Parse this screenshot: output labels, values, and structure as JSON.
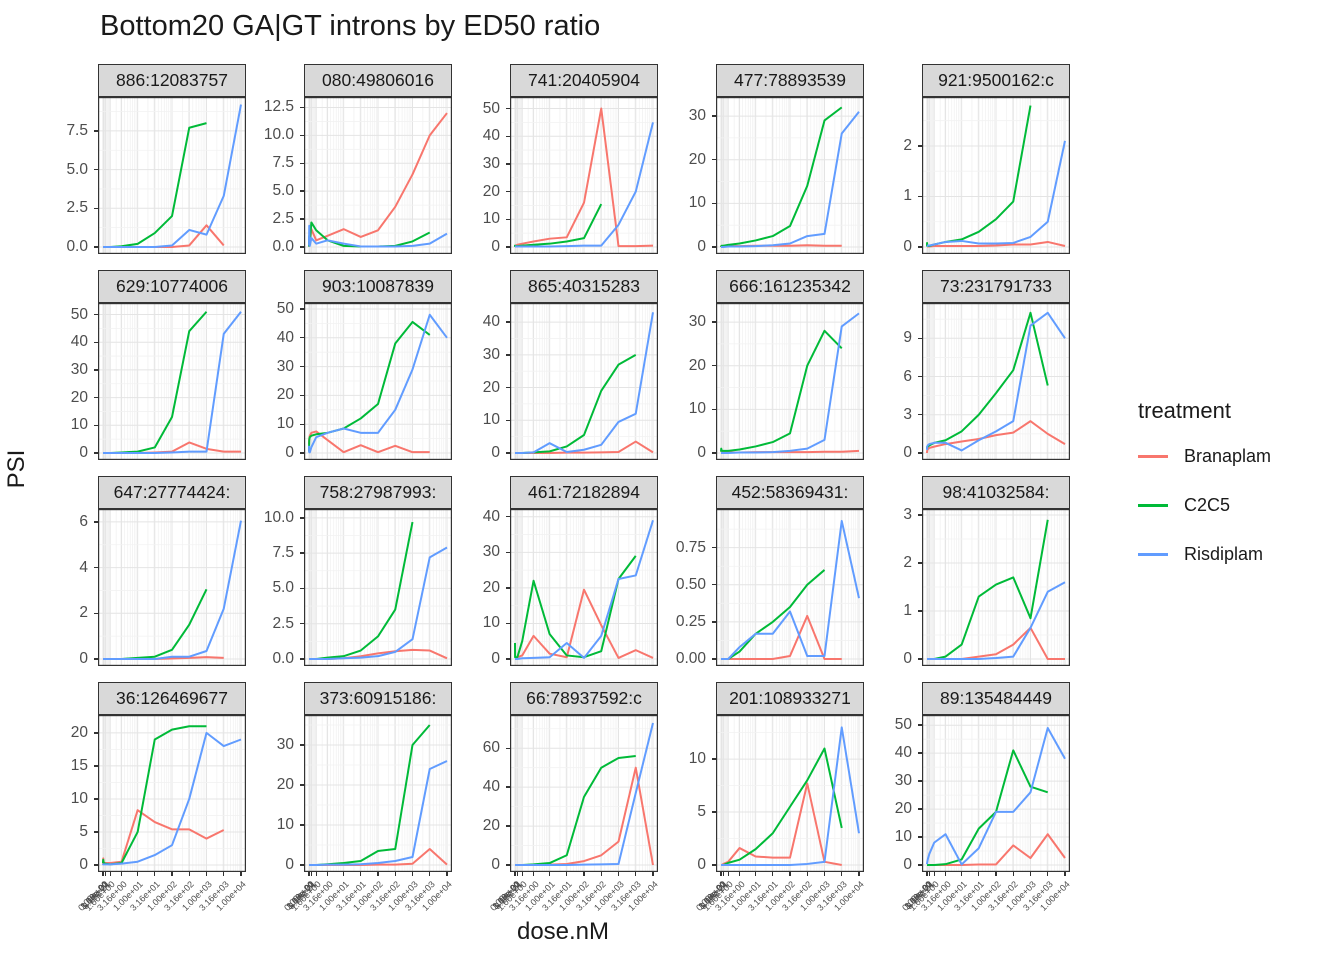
{
  "title": "Bottom20 GA|GT introns by ED50 ratio",
  "axes": {
    "x_title": "dose.nM",
    "y_title": "PSI",
    "x_tick_labels": [
      "0.00e+00",
      "1.00e-02",
      "3.16e-02",
      "1.00e-01",
      "3.16e-01",
      "1.00e+00",
      "3.16e+00",
      "1.00e+01",
      "3.16e+01",
      "1.00e+02",
      "3.16e+02",
      "1.00e+03",
      "3.16e+03",
      "1.00e+04"
    ]
  },
  "legend": {
    "title": "treatment",
    "items": [
      {
        "label": "Branaplam",
        "color": "#F8766D"
      },
      {
        "label": "C2C5",
        "color": "#00BA38"
      },
      {
        "label": "Risdiplam",
        "color": "#619CFF"
      }
    ]
  },
  "chart_data": {
    "type": "line",
    "x_scale": "pseudo-log (asinh) dose axis",
    "x_doses": [
      0,
      0.01,
      0.0316,
      0.1,
      0.316,
      1,
      3.16,
      10,
      31.6,
      100,
      316,
      1000,
      3160,
      10000
    ],
    "series_names": [
      "Branaplam",
      "C2C5",
      "Risdiplam"
    ],
    "facets": [
      {
        "strip": "886:12083757",
        "ymax": 9.3,
        "yticks": [
          "0.0",
          "2.5",
          "5.0",
          "7.5"
        ],
        "Branaplam": [
          0,
          0,
          0,
          0,
          0,
          0,
          0,
          0,
          0,
          0,
          0.1,
          1.4,
          0.1,
          null
        ],
        "C2C5": [
          0,
          0,
          0,
          0,
          0,
          0,
          0.05,
          0.2,
          0.9,
          2.0,
          7.7,
          8.0,
          null,
          null
        ],
        "Risdiplam": [
          0,
          0,
          0,
          0,
          0,
          0,
          0,
          0,
          0,
          0.1,
          1.1,
          0.8,
          3.3,
          9.2
        ]
      },
      {
        "strip": "080:49806016",
        "ymax": 12.9,
        "yticks": [
          "0.0",
          "2.5",
          "5.0",
          "7.5",
          "10.0",
          "12.5"
        ],
        "Branaplam": [
          0.3,
          0.1,
          0.8,
          0.3,
          1.6,
          0.6,
          1.0,
          1.6,
          0.9,
          1.5,
          3.6,
          6.5,
          10.0,
          12.0
        ],
        "C2C5": [
          0.7,
          0.1,
          1.0,
          0.3,
          2.2,
          1.5,
          0.6,
          0.1,
          0.05,
          0.05,
          0.1,
          0.5,
          1.3,
          null
        ],
        "Risdiplam": [
          0.9,
          0.2,
          1.9,
          0.1,
          0.8,
          0.3,
          0.6,
          0.3,
          0.05,
          0.05,
          0.05,
          0.1,
          0.3,
          1.2
        ]
      },
      {
        "strip": "741:20405904",
        "ymax": 52,
        "yticks": [
          "0",
          "10",
          "20",
          "30",
          "40",
          "50"
        ],
        "Branaplam": [
          0.3,
          0.3,
          0.5,
          0.5,
          0.8,
          1.2,
          2,
          3,
          3.5,
          16,
          50,
          0.3,
          0.3,
          0.5
        ],
        "C2C5": [
          0.8,
          0.3,
          0.3,
          0.3,
          0.3,
          0.5,
          0.8,
          1.2,
          2,
          3.2,
          15.5,
          null,
          null,
          null
        ],
        "Risdiplam": [
          0.2,
          0.2,
          0.2,
          0.2,
          0.2,
          0.2,
          0.2,
          0.2,
          0.3,
          0.5,
          0.5,
          8,
          20,
          45
        ]
      },
      {
        "strip": "477:78893539",
        "ymax": 33,
        "yticks": [
          "0",
          "10",
          "20",
          "30"
        ],
        "Branaplam": [
          0.1,
          0.1,
          0.2,
          0.1,
          0.2,
          0.3,
          0.2,
          0.3,
          0.3,
          0.3,
          0.4,
          0.3,
          0.3,
          null
        ],
        "C2C5": [
          0.3,
          0.2,
          0.2,
          0.3,
          0.3,
          0.5,
          0.8,
          1.5,
          2.5,
          4.8,
          14,
          29,
          32,
          null
        ],
        "Risdiplam": [
          0,
          0,
          0,
          0,
          0,
          0.1,
          0.1,
          0.2,
          0.4,
          0.8,
          2.5,
          3.0,
          26,
          31
        ]
      },
      {
        "strip": "921:9500162:c",
        "ymax": 2.85,
        "yticks": [
          "0",
          "1",
          "2"
        ],
        "Branaplam": [
          0.01,
          0.01,
          0.01,
          0.01,
          0.01,
          0.02,
          0.02,
          0.02,
          0.02,
          0.03,
          0.05,
          0.05,
          0.1,
          0.02
        ],
        "C2C5": [
          0.02,
          0.08,
          0.02,
          0.02,
          0.02,
          0.05,
          0.1,
          0.15,
          0.3,
          0.55,
          0.9,
          2.8,
          null,
          null
        ],
        "Risdiplam": [
          0.02,
          0.02,
          0.02,
          0.03,
          0.03,
          0.05,
          0.1,
          0.12,
          0.07,
          0.07,
          0.08,
          0.2,
          0.5,
          2.1
        ]
      },
      {
        "strip": "629:10774006",
        "ymax": 52,
        "yticks": [
          "0",
          "10",
          "20",
          "30",
          "40",
          "50"
        ],
        "Branaplam": [
          0,
          0,
          0,
          0,
          0,
          0,
          0,
          0,
          0.2,
          0.5,
          3.8,
          1.5,
          0.5,
          0.5
        ],
        "C2C5": [
          0,
          0,
          0,
          0,
          0,
          0,
          0.2,
          0.5,
          2,
          13,
          44,
          51,
          null,
          null
        ],
        "Risdiplam": [
          0,
          0,
          0,
          0,
          0,
          0,
          0,
          0,
          0,
          0.2,
          0.5,
          0.5,
          43,
          51
        ]
      },
      {
        "strip": "903:10087839",
        "ymax": 50,
        "yticks": [
          "0",
          "10",
          "20",
          "30",
          "40",
          "50"
        ],
        "Branaplam": [
          3,
          4,
          5,
          6,
          7,
          7.5,
          4.5,
          0.3,
          2.7,
          0.3,
          2.5,
          0.3,
          0.3,
          null
        ],
        "C2C5": [
          0.5,
          2,
          4.5,
          5.5,
          6,
          6.5,
          7,
          8.5,
          12,
          17,
          38,
          45.5,
          41,
          null
        ],
        "Risdiplam": [
          2.5,
          1,
          0.3,
          0.2,
          2,
          5.5,
          7,
          8.5,
          7,
          7,
          15,
          29,
          48,
          40
        ]
      },
      {
        "strip": "865:40315283",
        "ymax": 44,
        "yticks": [
          "0",
          "10",
          "20",
          "30",
          "40"
        ],
        "Branaplam": [
          0,
          0,
          0,
          0,
          0,
          0,
          0,
          0,
          0.1,
          0.1,
          0.2,
          0.3,
          3.5,
          0.2
        ],
        "C2C5": [
          0,
          0,
          0,
          0,
          0,
          0,
          0.2,
          0.5,
          2,
          5.5,
          19,
          27,
          30,
          null
        ],
        "Risdiplam": [
          0,
          0,
          0,
          0,
          0,
          0,
          0.2,
          3,
          0.3,
          1,
          2.5,
          9.5,
          12,
          43
        ]
      },
      {
        "strip": "666:161235342",
        "ymax": 33,
        "yticks": [
          "0",
          "10",
          "20",
          "30"
        ],
        "Branaplam": [
          0.1,
          0.1,
          0.1,
          0.1,
          0.1,
          0.1,
          0.1,
          0.2,
          0.2,
          0.2,
          0.2,
          0.3,
          0.3,
          0.5
        ],
        "C2C5": [
          0.3,
          0.5,
          1,
          0.5,
          0.5,
          0.5,
          0.8,
          1.5,
          2.5,
          4.5,
          20,
          28,
          24,
          null
        ],
        "Risdiplam": [
          0,
          0,
          0,
          0,
          0,
          0,
          0.1,
          0.1,
          0.2,
          0.5,
          1,
          3,
          29,
          32
        ]
      },
      {
        "strip": "73:231791733",
        "ymax": 11.3,
        "yticks": [
          "0",
          "3",
          "6",
          "9"
        ],
        "Branaplam": [
          0,
          0.1,
          0.2,
          0.3,
          0.4,
          0.5,
          0.7,
          0.9,
          1.1,
          1.4,
          1.6,
          2.5,
          1.5,
          0.7
        ],
        "C2C5": [
          0.4,
          0.4,
          0.5,
          0.5,
          0.6,
          0.8,
          1,
          1.7,
          3,
          4.7,
          6.5,
          11,
          5.3,
          null
        ],
        "Risdiplam": [
          0.4,
          0.3,
          0.5,
          0.6,
          0.7,
          0.8,
          0.8,
          0.2,
          1,
          1.7,
          2.5,
          10,
          11,
          9
        ]
      },
      {
        "strip": "647:27774424:",
        "ymax": 6.3,
        "yticks": [
          "0",
          "2",
          "4",
          "6"
        ],
        "Branaplam": [
          0,
          0,
          0,
          0,
          0,
          0,
          0,
          0,
          0,
          0.02,
          0.05,
          0.08,
          0.05,
          null
        ],
        "C2C5": [
          0,
          0,
          0,
          0,
          0,
          0,
          0,
          0.05,
          0.1,
          0.4,
          1.5,
          3.05,
          null,
          null
        ],
        "Risdiplam": [
          0,
          0,
          0,
          0,
          0,
          0,
          0,
          0,
          0,
          0.1,
          0.1,
          0.35,
          2.2,
          6.05
        ]
      },
      {
        "strip": "758:27987993:",
        "ymax": 10.2,
        "yticks": [
          "0.0",
          "2.5",
          "5.0",
          "7.5",
          "10.0"
        ],
        "Branaplam": [
          0,
          0,
          0,
          0,
          0,
          0,
          0,
          0.05,
          0.2,
          0.4,
          0.55,
          0.65,
          0.6,
          0.05
        ],
        "C2C5": [
          0,
          0,
          0,
          0,
          0,
          0,
          0.1,
          0.2,
          0.6,
          1.6,
          3.5,
          9.7,
          null,
          null
        ],
        "Risdiplam": [
          0,
          0,
          0,
          0,
          0,
          0,
          0,
          0.05,
          0.1,
          0.2,
          0.5,
          1.4,
          7.2,
          7.9
        ]
      },
      {
        "strip": "461:72182894",
        "ymax": 40.5,
        "yticks": [
          "0",
          "10",
          "20",
          "30",
          "40"
        ],
        "Branaplam": [
          0,
          0,
          0,
          0,
          0.5,
          1,
          6.5,
          1.5,
          0.5,
          19.5,
          9.5,
          0.3,
          2.5,
          0.3
        ],
        "C2C5": [
          4.5,
          0.5,
          0.5,
          0.5,
          0.5,
          5,
          22,
          7,
          1,
          0.5,
          2.2,
          22.5,
          29,
          null
        ],
        "Risdiplam": [
          0,
          0,
          0,
          0,
          0,
          0.2,
          0.3,
          0.5,
          4.5,
          0.3,
          6.5,
          22.5,
          23.5,
          39
        ]
      },
      {
        "strip": "452:58369431:",
        "ymax": 0.97,
        "yticks": [
          "0.00",
          "0.25",
          "0.50",
          "0.75"
        ],
        "Branaplam": [
          0,
          0,
          0,
          0,
          0,
          0,
          0,
          0,
          0,
          0.02,
          0.29,
          0,
          0,
          null
        ],
        "C2C5": [
          0,
          0,
          0,
          0,
          0,
          0,
          0.05,
          0.17,
          0.25,
          0.35,
          0.5,
          0.6,
          null,
          null
        ],
        "Risdiplam": [
          0,
          0,
          0,
          0,
          0,
          0,
          0.08,
          0.17,
          0.17,
          0.32,
          0.02,
          0.02,
          0.93,
          0.41
        ]
      },
      {
        "strip": "98:41032584:",
        "ymax": 3.0,
        "yticks": [
          "0",
          "1",
          "2",
          "3"
        ],
        "Branaplam": [
          0,
          0,
          0,
          0,
          0,
          0,
          0,
          0,
          0.05,
          0.1,
          0.3,
          0.65,
          0,
          0
        ],
        "C2C5": [
          0,
          0,
          0,
          0,
          0,
          0,
          0.05,
          0.3,
          1.3,
          1.55,
          1.7,
          0.85,
          2.9,
          null
        ],
        "Risdiplam": [
          0,
          0,
          0,
          0,
          0,
          0,
          0,
          0,
          0,
          0.02,
          0.05,
          0.65,
          1.4,
          1.6
        ]
      },
      {
        "strip": "36:126469677",
        "ymax": 21.8,
        "yticks": [
          "0",
          "5",
          "10",
          "15",
          "20"
        ],
        "Branaplam": [
          0.2,
          0.5,
          1,
          0.3,
          0.3,
          0.3,
          0.5,
          8.3,
          6.5,
          5.4,
          5.4,
          4,
          5.3,
          null
        ],
        "C2C5": [
          0.3,
          0.5,
          0.8,
          0.3,
          0.2,
          0.1,
          0.3,
          5,
          19,
          20.5,
          21,
          21,
          null,
          null
        ],
        "Risdiplam": [
          0.2,
          0.1,
          0.1,
          0.1,
          0.1,
          0.1,
          0.2,
          0.5,
          1.5,
          3,
          10,
          20,
          18,
          19
        ]
      },
      {
        "strip": "373:60915186:",
        "ymax": 36,
        "yticks": [
          "0",
          "10",
          "20",
          "30"
        ],
        "Branaplam": [
          0,
          0,
          0,
          0,
          0,
          0,
          0,
          0,
          0,
          0.1,
          0.1,
          0.3,
          4,
          0.1
        ],
        "C2C5": [
          0,
          0,
          0,
          0,
          0,
          0,
          0.2,
          0.5,
          1,
          3.5,
          4,
          30,
          35,
          null
        ],
        "Risdiplam": [
          0,
          0,
          0,
          0,
          0,
          0,
          0.1,
          0.1,
          0.2,
          0.5,
          1,
          2,
          24,
          26
        ]
      },
      {
        "strip": "66:78937592:c",
        "ymax": 74,
        "yticks": [
          "0",
          "20",
          "40",
          "60"
        ],
        "Branaplam": [
          0,
          0,
          0,
          0,
          0,
          0,
          0,
          0.2,
          0.5,
          2,
          5,
          12,
          50,
          0
        ],
        "C2C5": [
          0,
          0,
          0,
          0,
          0,
          0,
          0.3,
          1,
          5,
          35,
          50,
          55,
          56,
          null
        ],
        "Risdiplam": [
          0,
          0,
          0,
          0,
          0,
          0,
          0,
          0,
          0,
          0.2,
          0.3,
          0.5,
          37,
          73
        ]
      },
      {
        "strip": "201:108933271",
        "ymax": 13.6,
        "yticks": [
          "0",
          "5",
          "10"
        ],
        "Branaplam": [
          0,
          0,
          0,
          0,
          0.1,
          0.3,
          1.6,
          0.8,
          0.7,
          0.7,
          7.7,
          0.3,
          0,
          null
        ],
        "C2C5": [
          0,
          0,
          0,
          0,
          0,
          0.2,
          0.5,
          1.5,
          3,
          5.5,
          8,
          11,
          3.5,
          null
        ],
        "Risdiplam": [
          0,
          0,
          0,
          0,
          0,
          0,
          0,
          0,
          0,
          0,
          0.1,
          0.3,
          13,
          3
        ]
      },
      {
        "strip": "89:135484449",
        "ymax": 51.5,
        "yticks": [
          "0",
          "10",
          "20",
          "30",
          "40",
          "50"
        ],
        "Branaplam": [
          0,
          0,
          0,
          0,
          0,
          0,
          0,
          0,
          0.2,
          0.2,
          7,
          2.5,
          11,
          2.5
        ],
        "C2C5": [
          0,
          0,
          0,
          0,
          0,
          0,
          0.3,
          2,
          13,
          19,
          41,
          28,
          26,
          null
        ],
        "Risdiplam": [
          0.3,
          0.5,
          1,
          2,
          4,
          8,
          11,
          0.2,
          6,
          19,
          19,
          26,
          49,
          38
        ]
      }
    ]
  }
}
